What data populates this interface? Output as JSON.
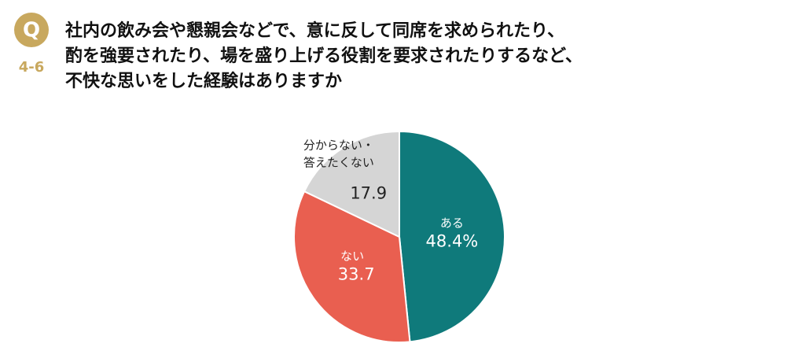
{
  "header": {
    "badge": "Q",
    "number": "4-6",
    "title_lines": [
      "社内の飲み会や懇親会などで、意に反して同席を求められたり、",
      "酌を強要されたり、場を盛り上げる役割を要求されたりするなど、",
      "不快な思いをした経験はありますか"
    ]
  },
  "chart_data": {
    "type": "pie",
    "categories": [
      "ある",
      "ない",
      "分からない・\n答えたくない"
    ],
    "values": [
      48.4,
      33.7,
      17.9
    ],
    "value_labels": [
      "48.4%",
      "33.7",
      "17.9"
    ],
    "colors": [
      "#0f7a7b",
      "#e95f50",
      "#d5d5d5"
    ],
    "label_colors": [
      "#ffffff",
      "#ffffff",
      "#222222"
    ]
  }
}
